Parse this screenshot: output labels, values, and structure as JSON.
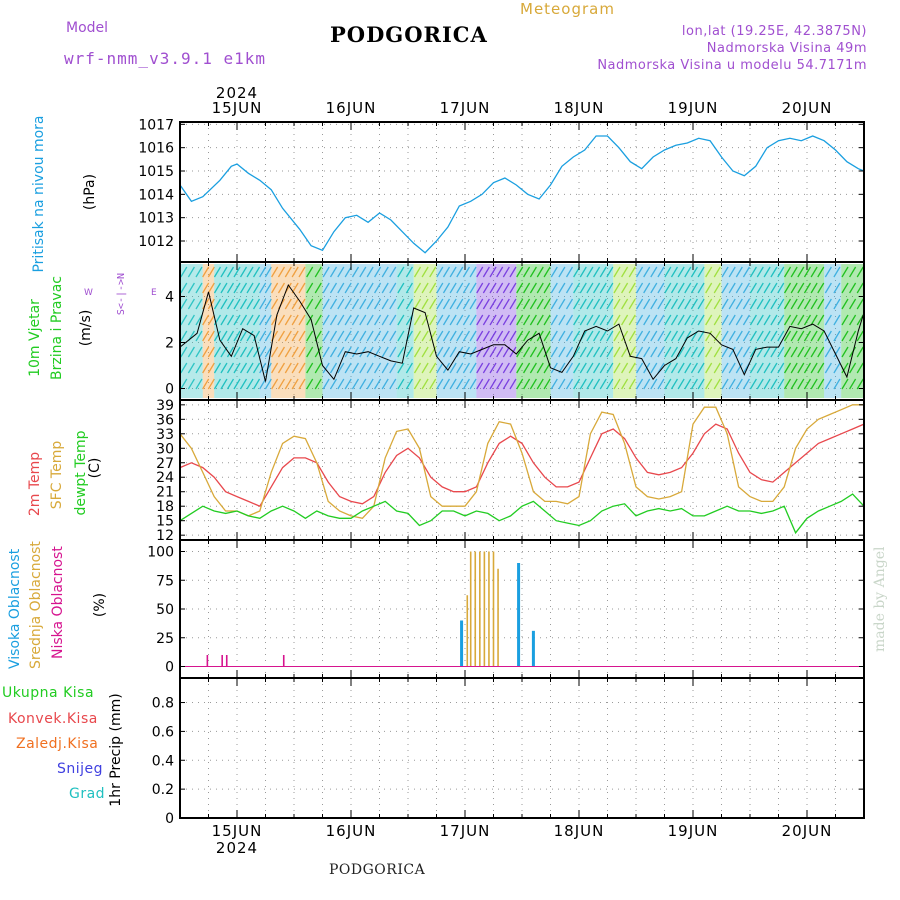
{
  "header": {
    "model_label": "Model",
    "model_name": "wrf-nmm_v3.9.1 e1km",
    "title": "PODGORICA",
    "meteogram_label": "Meteogram",
    "lonlat": "lon,lat (19.25E, 42.3875N)",
    "elevation": "Nadmorska Visina 49m",
    "model_elevation": "Nadmorska Visina u modelu 54.7171m",
    "footer_title": "PODGORICA",
    "watermark": "made by Angel",
    "year": "2024"
  },
  "colors": {
    "pressure": "#1a9fe0",
    "temp2m": "#e8484d",
    "sfc": "#d8a93a",
    "dewpt": "#22cc22",
    "high_cloud": "#1a9fe0",
    "mid_cloud": "#d8a93a",
    "low_cloud": "#d6148f",
    "purple": "#a04fd0",
    "total_precip": "#22cc22",
    "conv_precip": "#e8484d",
    "frz_precip": "#f07020",
    "snow": "#4040e0",
    "grad": "#20c0c0"
  },
  "panel_labels": {
    "pressure": {
      "name": "Pritisak na nivou mora",
      "unit": "(hPa)"
    },
    "wind": {
      "name1": "10m Vjetar",
      "name2": "Brzina i Pravac",
      "unit": "(m/s)",
      "compass_n": "N",
      "compass_s": "S",
      "compass_e": "E",
      "compass_w": "W"
    },
    "temp": {
      "t2m": "2m Temp",
      "sfc": "SFC Temp",
      "dew": "dewpt Temp",
      "unit": "(C)"
    },
    "cloud": {
      "high": "Visoka Oblacnost",
      "mid": "Srednja Oblacnost",
      "low": "Niska Oblacnost",
      "unit": "(%)"
    },
    "precip": {
      "total": "Ukupna Kisa",
      "conv": "Konvek.Kisa",
      "frz": "Zaledj.Kisa",
      "snow": "Snijeg",
      "grad": "Grad",
      "unit": "1hr Precip (mm)"
    }
  },
  "chart_data": [
    {
      "type": "line",
      "name": "pressure",
      "x_unit": "days since 15 JUN 00 UTC",
      "xlim": [
        -0.5,
        5.5
      ],
      "x_ticks": [
        "15JUN",
        "16JUN",
        "17JUN",
        "18JUN",
        "19JUN",
        "20JUN"
      ],
      "ylabel": "(hPa)",
      "ylim": [
        1011.1,
        1017.1
      ],
      "y_ticks": [
        1012,
        1013,
        1014,
        1015,
        1016,
        1017
      ],
      "series": [
        {
          "name": "Pritisak na nivou mora",
          "color": "#1a9fe0",
          "x": [
            -0.5,
            -0.4,
            -0.3,
            -0.15,
            -0.05,
            0.0,
            0.1,
            0.2,
            0.3,
            0.4,
            0.55,
            0.65,
            0.75,
            0.85,
            0.95,
            1.05,
            1.15,
            1.25,
            1.35,
            1.45,
            1.55,
            1.65,
            1.75,
            1.85,
            1.95,
            2.05,
            2.15,
            2.25,
            2.35,
            2.45,
            2.55,
            2.65,
            2.75,
            2.85,
            2.95,
            3.05,
            3.15,
            3.25,
            3.35,
            3.45,
            3.55,
            3.65,
            3.75,
            3.85,
            3.95,
            4.05,
            4.15,
            4.25,
            4.35,
            4.45,
            4.55,
            4.65,
            4.75,
            4.85,
            4.95,
            5.05,
            5.15,
            5.25,
            5.35,
            5.45,
            5.5
          ],
          "values": [
            1014.4,
            1013.7,
            1013.9,
            1014.6,
            1015.2,
            1015.3,
            1014.9,
            1014.6,
            1014.2,
            1013.4,
            1012.5,
            1011.8,
            1011.6,
            1012.4,
            1013.0,
            1013.1,
            1012.8,
            1013.2,
            1012.9,
            1012.4,
            1011.9,
            1011.5,
            1012.0,
            1012.6,
            1013.5,
            1013.7,
            1014.0,
            1014.5,
            1014.7,
            1014.4,
            1014.0,
            1013.8,
            1014.4,
            1015.2,
            1015.6,
            1015.9,
            1016.5,
            1016.5,
            1016.0,
            1015.4,
            1015.1,
            1015.6,
            1015.9,
            1016.1,
            1016.2,
            1016.4,
            1016.3,
            1015.6,
            1015.0,
            1014.8,
            1015.2,
            1016.0,
            1016.3,
            1016.4,
            1016.3,
            1016.5,
            1016.3,
            1015.9,
            1015.4,
            1015.1,
            1015.0
          ]
        }
      ]
    },
    {
      "type": "line",
      "name": "wind",
      "x_unit": "days since 15 JUN 00 UTC",
      "xlim": [
        -0.5,
        5.5
      ],
      "ylabel": "(m/s)",
      "ylim": [
        -0.5,
        5.5
      ],
      "y_ticks": [
        0,
        2,
        4
      ],
      "series": [
        {
          "name": "wind speed",
          "color": "#000000",
          "x": [
            -0.5,
            -0.35,
            -0.25,
            -0.15,
            -0.05,
            0.05,
            0.15,
            0.25,
            0.35,
            0.45,
            0.55,
            0.65,
            0.75,
            0.85,
            0.95,
            1.05,
            1.15,
            1.25,
            1.35,
            1.45,
            1.55,
            1.65,
            1.75,
            1.85,
            1.95,
            2.05,
            2.15,
            2.25,
            2.35,
            2.45,
            2.55,
            2.65,
            2.75,
            2.85,
            2.95,
            3.05,
            3.15,
            3.25,
            3.35,
            3.45,
            3.55,
            3.65,
            3.75,
            3.85,
            3.95,
            4.05,
            4.15,
            4.25,
            4.35,
            4.45,
            4.55,
            4.65,
            4.75,
            4.85,
            4.95,
            5.05,
            5.15,
            5.25,
            5.35,
            5.45,
            5.5
          ],
          "values": [
            1.8,
            2.4,
            4.2,
            2.1,
            1.4,
            2.6,
            2.3,
            0.3,
            3.2,
            4.5,
            3.8,
            3.0,
            1.0,
            0.4,
            1.6,
            1.5,
            1.6,
            1.4,
            1.2,
            1.1,
            3.5,
            3.3,
            1.4,
            0.8,
            1.6,
            1.5,
            1.7,
            1.9,
            1.9,
            1.5,
            2.1,
            2.4,
            0.9,
            0.7,
            1.4,
            2.5,
            2.7,
            2.5,
            2.8,
            1.4,
            1.3,
            0.4,
            1.0,
            1.3,
            2.2,
            2.5,
            2.4,
            1.9,
            1.7,
            0.6,
            1.7,
            1.8,
            1.8,
            2.7,
            2.6,
            2.8,
            2.5,
            1.5,
            0.5,
            2.5,
            3.3
          ]
        }
      ]
    },
    {
      "type": "line",
      "name": "temperature",
      "x_unit": "days since 15 JUN 00 UTC",
      "xlim": [
        -0.5,
        5.5
      ],
      "ylabel": "(C)",
      "ylim": [
        11,
        40
      ],
      "y_ticks": [
        12,
        15,
        18,
        21,
        24,
        27,
        30,
        33,
        36,
        39
      ],
      "series": [
        {
          "name": "2m Temp",
          "color": "#e8484d",
          "x": [
            -0.5,
            -0.4,
            -0.3,
            -0.2,
            -0.1,
            0.0,
            0.1,
            0.2,
            0.3,
            0.4,
            0.5,
            0.6,
            0.7,
            0.8,
            0.9,
            1.0,
            1.1,
            1.2,
            1.3,
            1.4,
            1.5,
            1.6,
            1.7,
            1.8,
            1.9,
            2.0,
            2.1,
            2.2,
            2.3,
            2.4,
            2.5,
            2.6,
            2.7,
            2.8,
            2.9,
            3.0,
            3.1,
            3.2,
            3.3,
            3.4,
            3.5,
            3.6,
            3.7,
            3.8,
            3.9,
            4.0,
            4.1,
            4.2,
            4.3,
            4.4,
            4.5,
            4.6,
            4.7,
            4.8,
            4.9,
            5.0,
            5.1,
            5.2,
            5.3,
            5.4,
            5.5
          ],
          "values": [
            26,
            27,
            26,
            24,
            21,
            20,
            19,
            18,
            22,
            26,
            28,
            28,
            27,
            23,
            20,
            19,
            18.5,
            20,
            25,
            28.5,
            30,
            28,
            24,
            22,
            21,
            21,
            22,
            27,
            31,
            32.5,
            31,
            27,
            24,
            22,
            22,
            23,
            28,
            33,
            34,
            32,
            28,
            25,
            24.5,
            25,
            26,
            29,
            33,
            35,
            34,
            29,
            25,
            23.5,
            23,
            25,
            27,
            29,
            31,
            32,
            33,
            34,
            35
          ]
        },
        {
          "name": "SFC Temp",
          "color": "#d8a93a",
          "x": [
            -0.5,
            -0.4,
            -0.3,
            -0.2,
            -0.1,
            0.0,
            0.1,
            0.2,
            0.3,
            0.4,
            0.5,
            0.6,
            0.7,
            0.8,
            0.9,
            1.0,
            1.1,
            1.2,
            1.3,
            1.4,
            1.5,
            1.6,
            1.7,
            1.8,
            1.9,
            2.0,
            2.1,
            2.2,
            2.3,
            2.4,
            2.5,
            2.6,
            2.7,
            2.8,
            2.9,
            3.0,
            3.1,
            3.2,
            3.3,
            3.4,
            3.5,
            3.6,
            3.7,
            3.8,
            3.9,
            4.0,
            4.1,
            4.2,
            4.3,
            4.4,
            4.5,
            4.6,
            4.7,
            4.8,
            4.9,
            5.0,
            5.1,
            5.2,
            5.3,
            5.4,
            5.5
          ],
          "values": [
            33,
            30,
            25,
            20,
            17,
            17,
            16,
            17,
            25,
            31,
            32.5,
            32,
            27,
            19,
            17,
            16,
            15.5,
            18,
            28,
            33.5,
            34,
            30,
            20,
            18,
            18,
            18,
            21,
            31,
            35.5,
            35,
            29,
            21,
            19,
            19,
            18.5,
            20,
            33,
            37.5,
            37,
            31,
            22,
            20,
            19.5,
            20,
            21,
            35,
            38.5,
            38.5,
            33,
            22,
            20,
            19,
            19,
            22,
            30,
            34,
            36,
            37,
            38,
            39,
            39
          ]
        },
        {
          "name": "dewpt Temp",
          "color": "#22cc22",
          "x": [
            -0.5,
            -0.4,
            -0.3,
            -0.2,
            -0.1,
            0.0,
            0.1,
            0.2,
            0.3,
            0.4,
            0.5,
            0.6,
            0.7,
            0.8,
            0.9,
            1.0,
            1.1,
            1.2,
            1.3,
            1.4,
            1.5,
            1.6,
            1.7,
            1.8,
            1.9,
            2.0,
            2.1,
            2.2,
            2.3,
            2.4,
            2.5,
            2.6,
            2.7,
            2.8,
            2.9,
            3.0,
            3.1,
            3.2,
            3.3,
            3.4,
            3.5,
            3.6,
            3.7,
            3.8,
            3.9,
            4.0,
            4.1,
            4.2,
            4.3,
            4.4,
            4.5,
            4.6,
            4.7,
            4.8,
            4.9,
            5.0,
            5.1,
            5.2,
            5.3,
            5.4,
            5.5
          ],
          "values": [
            15,
            16.5,
            18,
            17,
            16.5,
            17,
            16,
            15.5,
            17,
            18,
            17,
            15.5,
            17,
            16,
            15.5,
            15.5,
            17,
            18,
            19,
            17,
            16.5,
            14,
            15,
            17,
            17,
            16,
            17,
            16.5,
            15,
            16,
            18,
            19,
            17,
            15,
            14.5,
            14,
            15,
            17,
            18,
            18.5,
            16,
            17,
            17.5,
            17,
            17.5,
            16,
            16,
            17,
            18,
            17,
            17,
            16.5,
            17,
            18,
            12.5,
            15.5,
            17,
            18,
            19,
            20.5,
            18
          ]
        }
      ]
    },
    {
      "type": "bar",
      "name": "cloud cover",
      "x_unit": "days since 15 JUN 00 UTC",
      "xlim": [
        -0.5,
        5.5
      ],
      "ylabel": "(%)",
      "ylim": [
        -10,
        110
      ],
      "y_ticks": [
        0,
        25,
        50,
        75,
        100
      ],
      "series": [
        {
          "name": "Visoka Oblacnost",
          "color": "#1a9fe0",
          "x": [
            1.97,
            2.47,
            2.6
          ],
          "values": [
            40,
            90,
            31
          ]
        },
        {
          "name": "Srednja Oblacnost",
          "color": "#d8a93a",
          "x": [
            2.02,
            2.05,
            2.09,
            2.13,
            2.17,
            2.21,
            2.25,
            2.29
          ],
          "values": [
            62,
            100,
            100,
            100,
            100,
            100,
            100,
            85
          ]
        },
        {
          "name": "Niska Oblacnost",
          "color": "#d6148f",
          "x": [
            -0.26,
            -0.13,
            -0.09,
            0.41
          ],
          "values": [
            10,
            10,
            10,
            10
          ]
        }
      ]
    },
    {
      "type": "line",
      "name": "precipitation",
      "x_unit": "days since 15 JUN 00 UTC",
      "xlim": [
        -0.5,
        5.5
      ],
      "ylabel": "1hr Precip (mm)",
      "ylim": [
        0,
        0.97
      ],
      "y_ticks": [
        0,
        0.2,
        0.4,
        0.6,
        0.8
      ],
      "series": [
        {
          "name": "Ukupna Kisa",
          "color": "#22cc22",
          "x": [
            -0.5,
            5.5
          ],
          "values": [
            0,
            0
          ]
        }
      ]
    }
  ]
}
